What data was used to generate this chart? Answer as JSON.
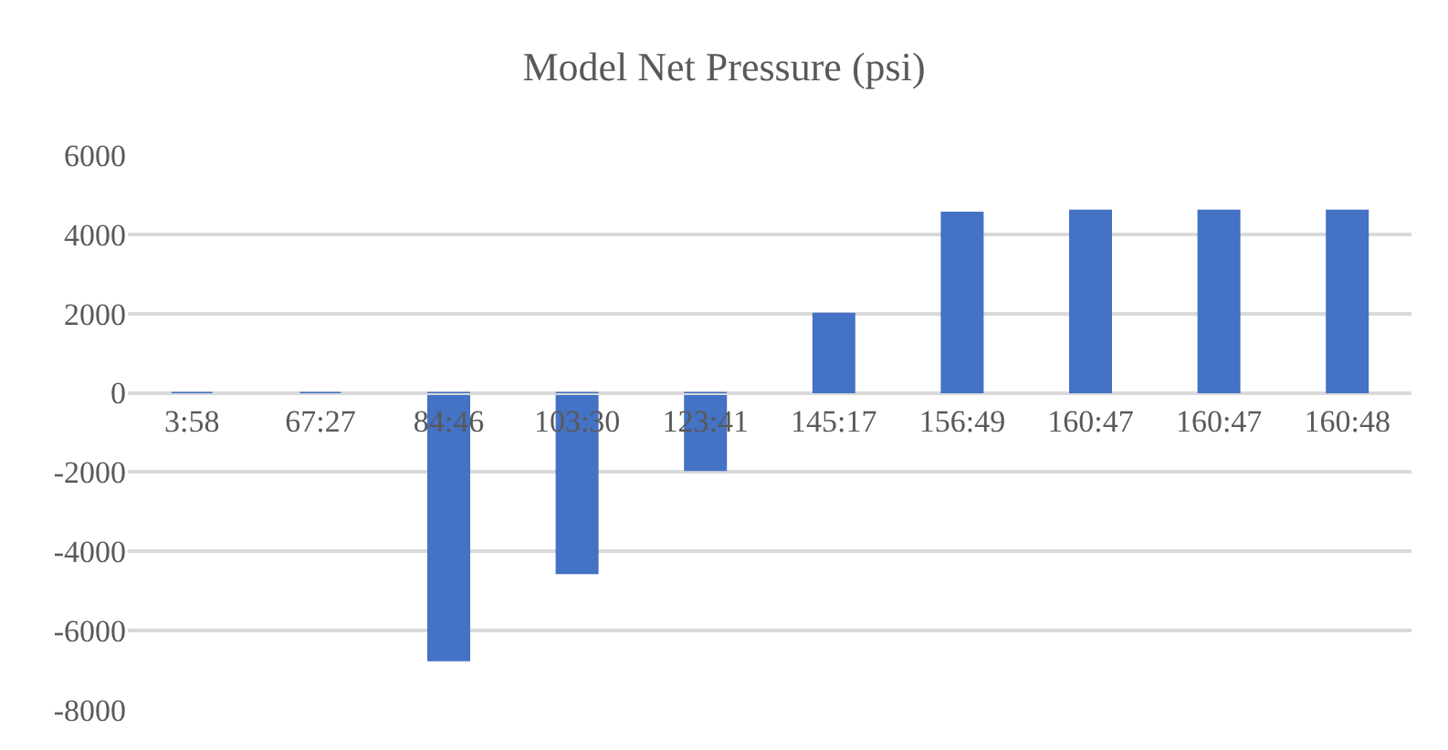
{
  "chart_data": {
    "type": "bar",
    "title": "Model Net Pressure (psi)",
    "categories": [
      "3:58",
      "67:27",
      "84:46",
      "103:30",
      "123:41",
      "145:17",
      "156:49",
      "160:47",
      "160:47",
      "160:48"
    ],
    "values": [
      0,
      0,
      -6750,
      -4550,
      -1950,
      2000,
      4550,
      4600,
      4600,
      4600
    ],
    "color": "#4472c4",
    "ylim": [
      -8000,
      6000
    ],
    "yticks": [
      -8000,
      -6000,
      -4000,
      -2000,
      0,
      2000,
      4000,
      6000
    ],
    "grid": "y",
    "legend": false
  }
}
